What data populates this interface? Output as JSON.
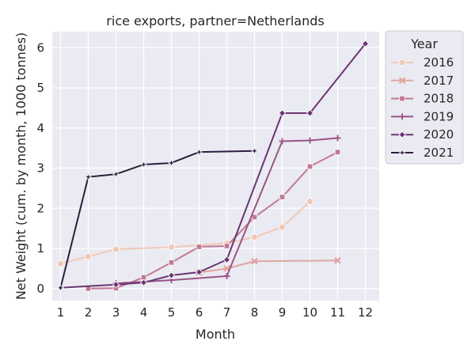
{
  "chart_data": {
    "type": "line",
    "title": "rice exports, partner=Netherlands",
    "xlabel": "Month",
    "ylabel": "Net Weight (cum. by month, 1000 tonnes)",
    "xlim": [
      0.7,
      12.5
    ],
    "ylim": [
      -0.3,
      6.4
    ],
    "xticks": [
      1,
      2,
      3,
      4,
      5,
      6,
      7,
      8,
      9,
      10,
      11,
      12
    ],
    "yticks": [
      0,
      1,
      2,
      3,
      4,
      5,
      6
    ],
    "grid": true,
    "legend": {
      "title": "Year",
      "placement": "outside-right"
    },
    "series": [
      {
        "name": "2016",
        "color": "#f0c9b6",
        "marker": "circle",
        "points": [
          [
            1,
            0.62
          ],
          [
            2,
            0.8
          ],
          [
            3,
            0.98
          ],
          [
            5,
            1.03
          ],
          [
            7,
            1.13
          ],
          [
            8,
            1.28
          ],
          [
            9,
            1.53
          ],
          [
            10,
            2.17
          ]
        ]
      },
      {
        "name": "2017",
        "color": "#e0a6a4",
        "marker": "x",
        "points": [
          [
            6,
            0.4
          ],
          [
            7,
            0.5
          ],
          [
            8,
            0.68
          ],
          [
            11,
            0.7
          ]
        ]
      },
      {
        "name": "2018",
        "color": "#c27993",
        "marker": "square",
        "points": [
          [
            2,
            0.0
          ],
          [
            3,
            0.01
          ],
          [
            4,
            0.28
          ],
          [
            5,
            0.65
          ],
          [
            6,
            1.04
          ],
          [
            7,
            1.06
          ],
          [
            8,
            1.78
          ],
          [
            9,
            2.28
          ],
          [
            10,
            3.04
          ],
          [
            11,
            3.4
          ]
        ]
      },
      {
        "name": "2019",
        "color": "#9a5486",
        "marker": "plus",
        "points": [
          [
            3,
            0.13
          ],
          [
            5,
            0.21
          ],
          [
            7,
            0.31
          ],
          [
            9,
            3.67
          ],
          [
            10,
            3.69
          ],
          [
            11,
            3.75
          ]
        ]
      },
      {
        "name": "2020",
        "color": "#6a3671",
        "marker": "diamond",
        "points": [
          [
            1,
            0.02
          ],
          [
            3,
            0.1
          ],
          [
            4,
            0.15
          ],
          [
            5,
            0.33
          ],
          [
            6,
            0.41
          ],
          [
            7,
            0.72
          ],
          [
            9,
            4.37
          ],
          [
            10,
            4.37
          ],
          [
            12,
            6.1
          ]
        ]
      },
      {
        "name": "2021",
        "color": "#2d1e3e",
        "marker": "star",
        "points": [
          [
            1,
            0.02
          ],
          [
            2,
            2.78
          ],
          [
            3,
            2.85
          ],
          [
            4,
            3.09
          ],
          [
            5,
            3.13
          ],
          [
            6,
            3.4
          ],
          [
            8,
            3.43
          ]
        ]
      }
    ]
  }
}
